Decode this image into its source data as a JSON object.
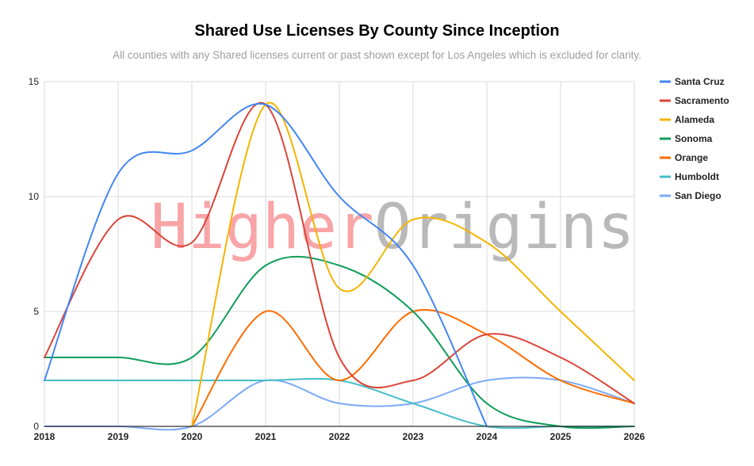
{
  "chart_data": {
    "type": "line",
    "title": "Shared Use Licenses By County Since Inception",
    "subtitle": "All counties with any Shared licenses current or past shown except for Los Angeles which is excluded for clarity.",
    "xlabel": "",
    "ylabel": "",
    "x": [
      2018,
      2019,
      2020,
      2021,
      2022,
      2023,
      2024,
      2025,
      2026
    ],
    "xlim": [
      2018,
      2026
    ],
    "ylim": [
      0,
      15
    ],
    "yticks": [
      0,
      5,
      10,
      15
    ],
    "grid": true,
    "smooth": true,
    "legend_position": "right",
    "watermark": {
      "part1": "Higher",
      "part2": "Origins",
      "color1": "#f8a5a8",
      "color2": "#b9b9b9"
    },
    "series": [
      {
        "name": "Santa Cruz",
        "color": "#4285f4",
        "values": [
          2,
          11,
          12,
          14,
          10,
          7,
          0,
          null,
          null
        ]
      },
      {
        "name": "Sacramento",
        "color": "#db4437",
        "values": [
          3,
          9,
          8,
          14,
          3,
          2,
          4,
          3,
          1
        ]
      },
      {
        "name": "Alameda",
        "color": "#f4b400",
        "values": [
          null,
          null,
          0,
          14,
          6,
          9,
          8,
          5,
          2
        ]
      },
      {
        "name": "Sonoma",
        "color": "#0f9d58",
        "values": [
          3,
          3,
          3,
          7,
          7,
          5,
          1,
          0,
          0
        ]
      },
      {
        "name": "Orange",
        "color": "#ff6d01",
        "values": [
          null,
          null,
          0,
          5,
          2,
          5,
          4,
          2,
          1
        ]
      },
      {
        "name": "Humboldt",
        "color": "#46bdc6",
        "values": [
          2,
          2,
          2,
          2,
          2,
          1,
          0,
          0,
          0
        ]
      },
      {
        "name": "San Diego",
        "color": "#7baaf7",
        "values": [
          0,
          0,
          0,
          2,
          1,
          1,
          2,
          2,
          1
        ]
      }
    ]
  }
}
